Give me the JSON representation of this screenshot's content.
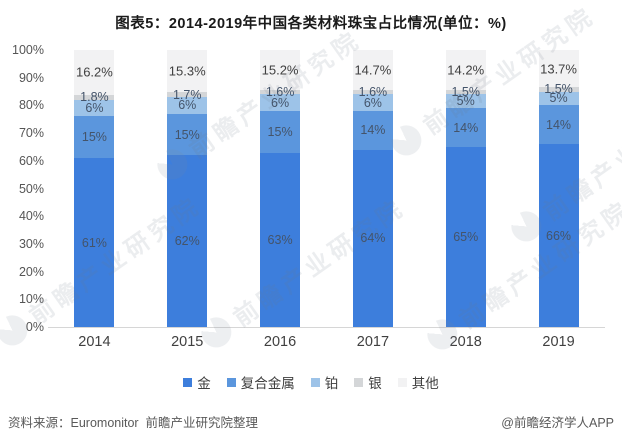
{
  "title": "图表5：2014-2019年中国各类材料珠宝占比情况(单位：%)",
  "chart_data": {
    "type": "bar",
    "stacked": true,
    "title": "图表5：2014-2019年中国各类材料珠宝占比情况(单位：%)",
    "categories": [
      "2014",
      "2015",
      "2016",
      "2017",
      "2018",
      "2019"
    ],
    "series": [
      {
        "name": "金",
        "key": "gold",
        "color": "#3d7edc",
        "label_color": "#44546a",
        "values": [
          61,
          62,
          63,
          64,
          65,
          66
        ]
      },
      {
        "name": "复合金属",
        "key": "composite-metal",
        "color": "#5b96dd",
        "label_color": "#44546a",
        "values": [
          15,
          15,
          15,
          14,
          14,
          14
        ]
      },
      {
        "name": "铂",
        "key": "platinum",
        "color": "#9dc3e8",
        "label_color": "#44546a",
        "values": [
          6,
          6,
          6,
          6,
          5,
          5
        ]
      },
      {
        "name": "银",
        "key": "silver",
        "color": "#d4d6d8",
        "label_color": "#44546a",
        "values": [
          1.8,
          1.7,
          1.6,
          1.6,
          1.5,
          1.5
        ]
      },
      {
        "name": "其他",
        "key": "other",
        "color": "#f2f2f3",
        "label_color": "#404040",
        "values": [
          16.2,
          15.3,
          15.2,
          14.7,
          14.2,
          13.7
        ]
      }
    ],
    "ylim": [
      0,
      100
    ],
    "yticks": [
      "100%",
      "90%",
      "80%",
      "70%",
      "60%",
      "50%",
      "40%",
      "30%",
      "20%",
      "10%",
      "0%"
    ],
    "grid": false,
    "legend_position": "bottom",
    "axis_line_color": "#d6d6d6"
  },
  "footer": {
    "source": "资料来源：Euromonitor  前瞻产业研究院整理",
    "brand": "@前瞻经济学人APP"
  },
  "watermark": {
    "text": "前瞻产业研究院"
  }
}
